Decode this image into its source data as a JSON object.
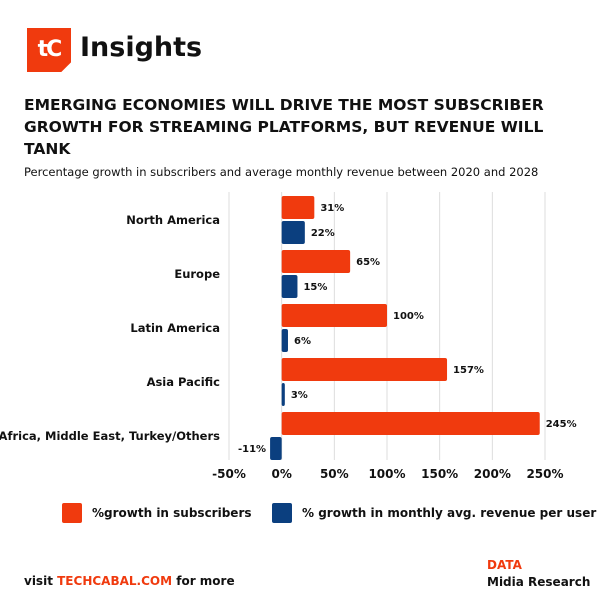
{
  "header": {
    "logo_text": "tC",
    "brand": "Insights"
  },
  "headline": "EMERGING ECONOMIES WILL DRIVE THE MOST SUBSCRIBER GROWTH FOR STREAMING PLATFORMS, BUT REVENUE WILL TANK",
  "footer": {
    "visit_prefix": "visit",
    "link": "TECHCABAL.COM",
    "visit_suffix": "for more",
    "data_label": "DATA",
    "source": "Midia Research"
  },
  "colors": {
    "subscribers": "#f03a0e",
    "revenue": "#0b3f7f"
  },
  "chart_data": {
    "type": "bar",
    "orientation": "horizontal",
    "title": "Percentage growth in subscribers and average monthly revenue between 2020 and 2028",
    "categories": [
      "North America",
      "Europe",
      "Latin America",
      "Asia Pacific",
      "Africa, Middle East, Turkey/Others"
    ],
    "series": [
      {
        "name": "%growth in subscribers",
        "values": [
          31,
          65,
          100,
          157,
          245
        ],
        "labels": [
          "31%",
          "65%",
          "100%",
          "157%",
          "245%"
        ]
      },
      {
        "name": "% growth in monthly avg. revenue per user",
        "values": [
          22,
          15,
          6,
          3,
          -11
        ],
        "labels": [
          "22%",
          "15%",
          "6%",
          "3%",
          "-11%"
        ]
      }
    ],
    "xlim": [
      -50,
      250
    ],
    "xticks": [
      -50,
      0,
      50,
      100,
      150,
      200,
      250
    ],
    "xtick_labels": [
      "-50%",
      "0%",
      "50%",
      "100%",
      "150%",
      "200%",
      "250%"
    ],
    "grid": true,
    "legend": "bottom"
  }
}
